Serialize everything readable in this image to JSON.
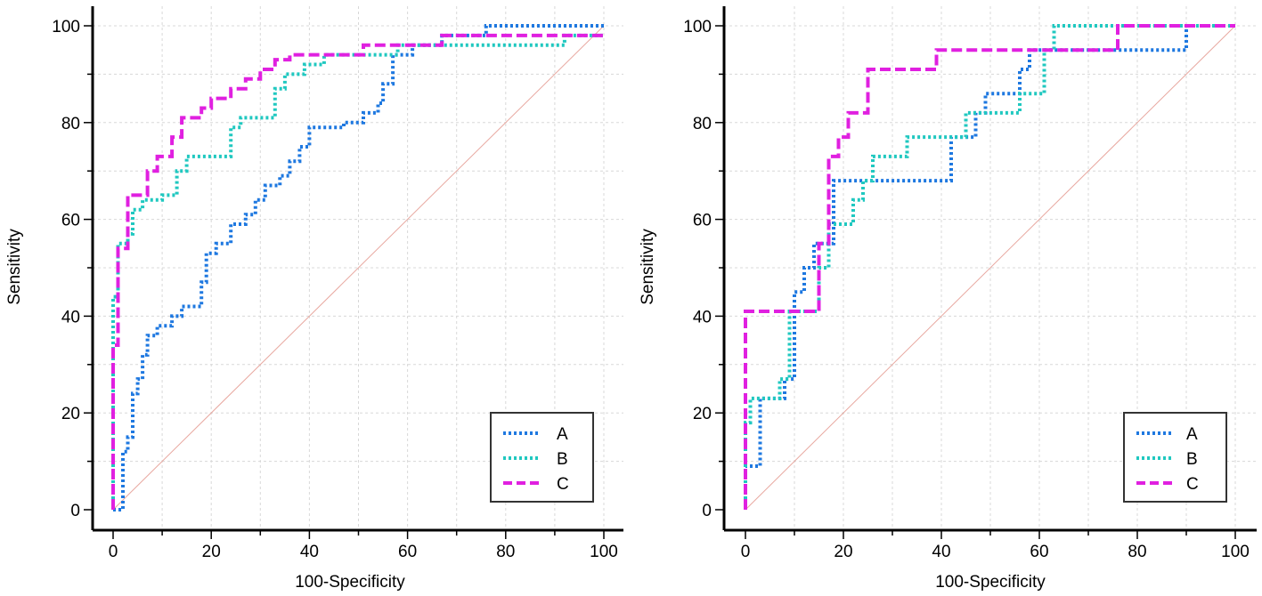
{
  "chart_data": [
    {
      "type": "line",
      "subtype": "roc",
      "title": "",
      "xlabel": "100-Specificity",
      "ylabel": "Sensitivity",
      "xlim": [
        0,
        100
      ],
      "ylim": [
        0,
        100
      ],
      "xticks": [
        "0",
        "20",
        "40",
        "60",
        "80",
        "100"
      ],
      "yticks": [
        "0",
        "20",
        "40",
        "60",
        "80",
        "100"
      ],
      "grid": true,
      "legend_position": "bottom-right",
      "reference_line": {
        "x": [
          0,
          100
        ],
        "y": [
          0,
          100
        ],
        "color": "#e8a8a0"
      },
      "series": [
        {
          "name": "A",
          "color": "#1e78e0",
          "dash": "dotted",
          "x": [
            0,
            2,
            2,
            3,
            3,
            4,
            4,
            5,
            5,
            6,
            6,
            7,
            7,
            9,
            9,
            12,
            12,
            14,
            14,
            18,
            18,
            19,
            19,
            21,
            21,
            24,
            24,
            27,
            27,
            29,
            29,
            31,
            31,
            34,
            34,
            36,
            36,
            38,
            38,
            40,
            40,
            47,
            47,
            51,
            51,
            54,
            54,
            55,
            55,
            57,
            57,
            61,
            61,
            67,
            67,
            76,
            76,
            100
          ],
          "y": [
            0,
            0,
            12,
            12,
            15,
            15,
            24,
            24,
            27,
            27,
            32,
            32,
            36,
            36,
            38,
            38,
            40,
            40,
            42,
            42,
            47,
            47,
            53,
            53,
            55,
            55,
            59,
            59,
            61,
            61,
            64,
            64,
            67,
            67,
            69,
            69,
            72,
            72,
            75,
            75,
            79,
            79,
            80,
            80,
            82,
            82,
            84,
            84,
            88,
            88,
            94,
            94,
            96,
            96,
            98,
            98,
            100,
            100
          ]
        },
        {
          "name": "B",
          "color": "#20c8c0",
          "dash": "dotted",
          "x": [
            0,
            0,
            1,
            1,
            3,
            3,
            4,
            4,
            6,
            6,
            10,
            10,
            13,
            13,
            15,
            15,
            24,
            24,
            26,
            26,
            33,
            33,
            35,
            35,
            39,
            39,
            43,
            43,
            58,
            58,
            67,
            67,
            92,
            92,
            100
          ],
          "y": [
            0,
            44,
            44,
            55,
            55,
            57,
            57,
            62,
            62,
            64,
            64,
            65,
            65,
            70,
            70,
            73,
            73,
            79,
            79,
            81,
            81,
            87,
            87,
            90,
            90,
            92,
            92,
            94,
            94,
            96,
            96,
            96,
            96,
            98,
            98
          ]
        },
        {
          "name": "C",
          "color": "#e020e0",
          "dash": "dashed",
          "x": [
            0,
            0,
            1,
            1,
            3,
            3,
            7,
            7,
            9,
            9,
            12,
            12,
            14,
            14,
            18,
            18,
            20,
            20,
            24,
            24,
            27,
            27,
            30,
            30,
            33,
            33,
            36,
            36,
            40,
            40,
            51,
            51,
            67,
            67,
            100
          ],
          "y": [
            0,
            34,
            34,
            54,
            54,
            65,
            65,
            70,
            70,
            73,
            73,
            77,
            77,
            81,
            81,
            83,
            83,
            85,
            85,
            87,
            87,
            89,
            89,
            91,
            91,
            93,
            93,
            94,
            94,
            94,
            94,
            96,
            96,
            98,
            98
          ]
        }
      ]
    },
    {
      "type": "line",
      "subtype": "roc",
      "title": "",
      "xlabel": "100-Specificity",
      "ylabel": "Sensitivity",
      "xlim": [
        0,
        100
      ],
      "ylim": [
        0,
        100
      ],
      "xticks": [
        "0",
        "20",
        "40",
        "60",
        "80",
        "100"
      ],
      "yticks": [
        "0",
        "20",
        "40",
        "60",
        "80",
        "100"
      ],
      "grid": true,
      "legend_position": "bottom-right",
      "reference_line": {
        "x": [
          0,
          100
        ],
        "y": [
          0,
          100
        ],
        "color": "#e8a8a0"
      },
      "series": [
        {
          "name": "A",
          "color": "#1e78e0",
          "dash": "dotted",
          "x": [
            0,
            0,
            1,
            1,
            3,
            3,
            8,
            8,
            10,
            10,
            12,
            12,
            14,
            14,
            15,
            15,
            18,
            18,
            42,
            42,
            47,
            47,
            49,
            49,
            56,
            56,
            58,
            58,
            60,
            60,
            90,
            90,
            100
          ],
          "y": [
            0,
            9,
            9,
            9,
            9,
            23,
            23,
            27,
            27,
            45,
            45,
            50,
            50,
            55,
            55,
            55,
            55,
            68,
            68,
            77,
            77,
            82,
            82,
            86,
            86,
            91,
            91,
            95,
            95,
            95,
            95,
            100,
            100
          ]
        },
        {
          "name": "B",
          "color": "#20c8c0",
          "dash": "dotted",
          "x": [
            0,
            0,
            1,
            1,
            7,
            7,
            9,
            9,
            15,
            15,
            17,
            17,
            20,
            20,
            22,
            22,
            24,
            24,
            26,
            26,
            29,
            29,
            33,
            33,
            45,
            45,
            49,
            49,
            56,
            56,
            61,
            61,
            63,
            63,
            100
          ],
          "y": [
            0,
            18,
            18,
            23,
            23,
            27,
            27,
            41,
            41,
            50,
            50,
            59,
            59,
            59,
            59,
            64,
            64,
            68,
            68,
            73,
            73,
            73,
            73,
            77,
            77,
            82,
            82,
            82,
            82,
            86,
            86,
            95,
            95,
            100,
            100
          ]
        },
        {
          "name": "C",
          "color": "#e020e0",
          "dash": "dashed",
          "x": [
            0,
            0,
            1,
            1,
            15,
            15,
            17,
            17,
            19,
            19,
            21,
            21,
            23,
            23,
            25,
            25,
            39,
            39,
            60,
            60,
            76,
            76,
            100
          ],
          "y": [
            0,
            41,
            41,
            41,
            41,
            55,
            55,
            73,
            73,
            77,
            77,
            82,
            82,
            82,
            82,
            91,
            91,
            95,
            95,
            95,
            95,
            100,
            100
          ]
        }
      ]
    }
  ]
}
